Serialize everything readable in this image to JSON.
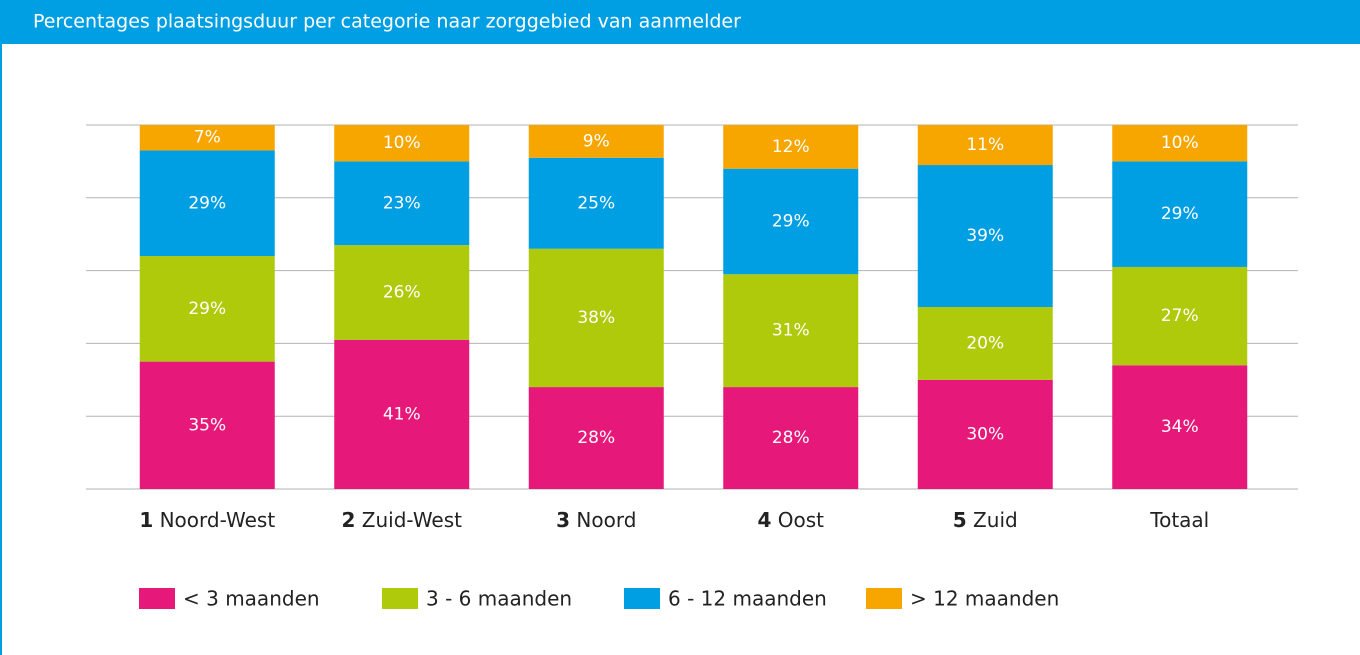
{
  "chart_data": {
    "type": "stacked_bar",
    "title": "Percentages plaatsingsduur per categorie naar zorggebied van aanmelder",
    "categories": [
      "1 Noord-West",
      "2 Zuid-West",
      "3 Noord",
      "4 Oost",
      "5 Zuid",
      "Totaal"
    ],
    "series": [
      {
        "name": "< 3 maanden",
        "color": "#e6197a",
        "values": [
          35,
          41,
          28,
          28,
          30,
          34
        ],
        "value_labels": [
          "35%",
          "41%",
          "28%",
          "28%",
          "30%",
          "34%"
        ]
      },
      {
        "name": "3 - 6 maanden",
        "color": "#afca0b",
        "values": [
          29,
          26,
          38,
          31,
          20,
          27
        ],
        "value_labels": [
          "29%",
          "26%",
          "38%",
          "31%",
          "20%",
          "27%"
        ]
      },
      {
        "name": "6 - 12 maanden",
        "color": "#009fe3",
        "values": [
          29,
          23,
          25,
          29,
          39,
          29
        ],
        "value_labels": [
          "29%",
          "23%",
          "25%",
          "29%",
          "39%",
          "29%"
        ]
      },
      {
        "name": "> 12 maanden",
        "color": "#f7a600",
        "values": [
          7,
          10,
          9,
          12,
          11,
          10
        ],
        "value_labels": [
          "7%",
          "10%",
          "9%",
          "12%",
          "11%",
          "10%"
        ]
      }
    ],
    "ylim": [
      0,
      100
    ],
    "yticks": [
      0,
      20,
      40,
      60,
      80,
      100
    ],
    "grid": true
  }
}
